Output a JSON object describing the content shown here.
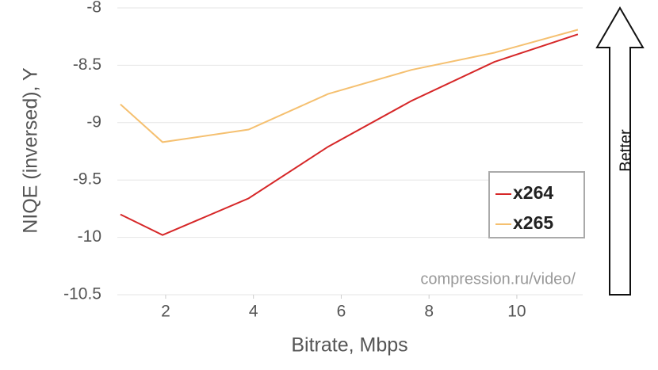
{
  "chart_data": {
    "type": "line",
    "x_label": "Bitrate, Mbps",
    "y_label": "NIQE (inversed), Y",
    "watermark": "compression.ru/video/",
    "arrow_label": "Better",
    "x": [
      0.97,
      1.93,
      3.89,
      5.7,
      7.6,
      9.49,
      11.39
    ],
    "series": [
      {
        "name": "x264",
        "color": "#d62728",
        "values": [
          -9.8,
          -9.98,
          -9.66,
          -9.21,
          -8.81,
          -8.47,
          -8.23
        ]
      },
      {
        "name": "x265",
        "color": "#f5c070",
        "values": [
          -8.84,
          -9.17,
          -9.06,
          -8.75,
          -8.54,
          -8.39,
          -8.19
        ]
      }
    ],
    "xlim": [
      0.9,
      11.5
    ],
    "xticks": [
      2,
      4,
      6,
      8,
      10
    ],
    "ylim": [
      -10.5,
      -8
    ],
    "yticks": [
      -10.5,
      -10,
      -9.5,
      -9,
      -8.5,
      -8
    ],
    "grid": true,
    "legend": "lower-right"
  }
}
